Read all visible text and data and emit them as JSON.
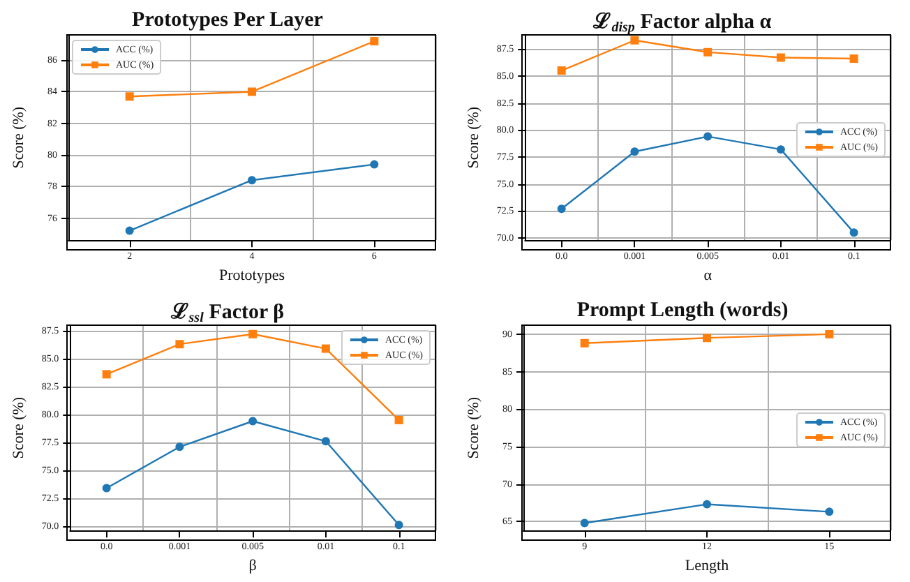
{
  "chart_data": [
    {
      "type": "line",
      "title": "Prototypes Per Layer",
      "xlabel": "Prototypes",
      "ylabel": "Score (%)",
      "categories": [
        "2",
        "4",
        "6"
      ],
      "series": [
        {
          "name": "ACC (%)",
          "color": "#1f77b4",
          "marker": "circle",
          "values": [
            75.2,
            78.4,
            79.4
          ]
        },
        {
          "name": "AUC (%)",
          "color": "#ff7f0e",
          "marker": "square",
          "values": [
            83.7,
            84.0,
            87.2
          ]
        }
      ],
      "ylim": [
        74.6,
        87.6
      ],
      "yticks": [
        76,
        78,
        80,
        82,
        84,
        86
      ],
      "grid": true,
      "legend": "top left"
    },
    {
      "type": "line",
      "title": "ℒ$_{disp}$ Factor alpha α",
      "xlabel": "α",
      "ylabel": "Score (%)",
      "categories": [
        "0.0",
        "0.001",
        "0.005",
        "0.01",
        "0.1"
      ],
      "series": [
        {
          "name": "ACC (%)",
          "color": "#1f77b4",
          "marker": "circle",
          "values": [
            72.7,
            78.0,
            79.4,
            78.2,
            70.5
          ]
        },
        {
          "name": "AUC (%)",
          "color": "#ff7f0e",
          "marker": "square",
          "values": [
            85.5,
            88.3,
            87.2,
            86.7,
            86.6
          ]
        }
      ],
      "ylim": [
        69.8,
        88.8
      ],
      "yticks": [
        {
          "value": 70,
          "label": "70.0"
        },
        72.5,
        {
          "value": 75,
          "label": "75.0"
        },
        77.5,
        {
          "value": 80,
          "label": "80.0"
        },
        82.5,
        {
          "value": 85,
          "label": "85.0"
        },
        87.5
      ],
      "grid": true,
      "legend": "right"
    },
    {
      "type": "line",
      "title": "ℒ$_{ssl}$ Factor β",
      "xlabel": "β",
      "ylabel": "Score (%)",
      "categories": [
        "0.0",
        "0.001",
        "0.005",
        "0.01",
        "0.1"
      ],
      "series": [
        {
          "name": "ACC (%)",
          "color": "#1f77b4",
          "marker": "circle",
          "values": [
            73.4,
            77.1,
            79.4,
            77.6,
            70.1
          ]
        },
        {
          "name": "AUC (%)",
          "color": "#ff7f0e",
          "marker": "square",
          "values": [
            83.6,
            86.3,
            87.2,
            85.9,
            79.5
          ]
        }
      ],
      "ylim": [
        69.6,
        88.0
      ],
      "yticks": [
        {
          "value": 70,
          "label": "70.0"
        },
        72.5,
        {
          "value": 75,
          "label": "75.0"
        },
        77.5,
        {
          "value": 80,
          "label": "80.0"
        },
        82.5,
        {
          "value": 85,
          "label": "85.0"
        },
        87.5
      ],
      "grid": true,
      "legend": "top right"
    },
    {
      "type": "line",
      "title": "Prompt Length (words)",
      "xlabel": "Length",
      "ylabel": "Score (%)",
      "categories": [
        "9",
        "12",
        "15"
      ],
      "series": [
        {
          "name": "ACC (%)",
          "color": "#1f77b4",
          "marker": "circle",
          "values": [
            64.8,
            67.3,
            66.3
          ]
        },
        {
          "name": "AUC (%)",
          "color": "#ff7f0e",
          "marker": "square",
          "values": [
            88.8,
            89.5,
            90.0
          ]
        }
      ],
      "ylim": [
        63.8,
        91.2
      ],
      "yticks": [
        65,
        70,
        75,
        80,
        85,
        90
      ],
      "grid": true,
      "legend": "right"
    }
  ]
}
